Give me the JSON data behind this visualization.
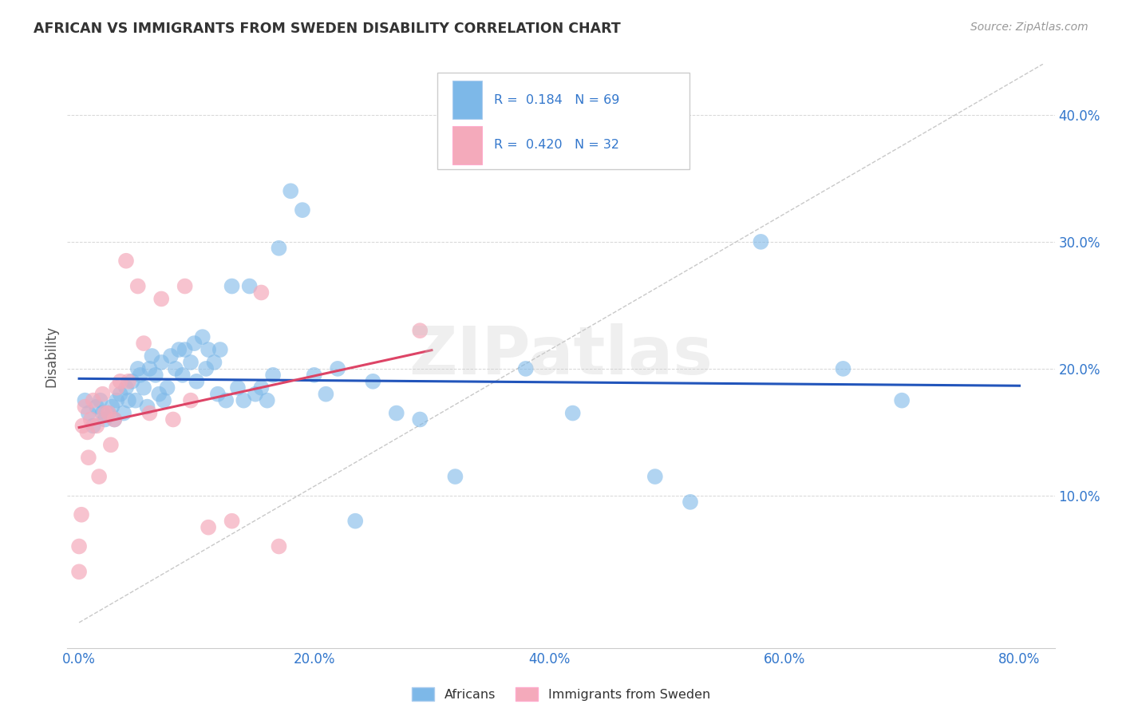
{
  "title": "AFRICAN VS IMMIGRANTS FROM SWEDEN DISABILITY CORRELATION CHART",
  "source": "Source: ZipAtlas.com",
  "ylabel": "Disability",
  "xlim": [
    -0.01,
    0.83
  ],
  "ylim": [
    -0.02,
    0.44
  ],
  "x_ticks": [
    0.0,
    0.2,
    0.4,
    0.6,
    0.8
  ],
  "y_ticks": [
    0.1,
    0.2,
    0.3,
    0.4
  ],
  "R_african": 0.184,
  "N_african": 69,
  "R_sweden": 0.42,
  "N_sweden": 32,
  "blue_color": "#7DB8E8",
  "pink_color": "#F4AABB",
  "blue_line_color": "#2255BB",
  "pink_line_color": "#DD4466",
  "diag_line_color": "#BBBBBB",
  "title_color": "#333333",
  "source_color": "#999999",
  "axis_label_color": "#3377CC",
  "ylabel_color": "#555555",
  "watermark": "ZIPatlas",
  "africans_x": [
    0.005,
    0.008,
    0.012,
    0.015,
    0.018,
    0.02,
    0.022,
    0.025,
    0.028,
    0.03,
    0.032,
    0.035,
    0.038,
    0.04,
    0.042,
    0.045,
    0.048,
    0.05,
    0.052,
    0.055,
    0.058,
    0.06,
    0.062,
    0.065,
    0.068,
    0.07,
    0.072,
    0.075,
    0.078,
    0.082,
    0.085,
    0.088,
    0.09,
    0.095,
    0.098,
    0.1,
    0.105,
    0.108,
    0.11,
    0.115,
    0.118,
    0.12,
    0.125,
    0.13,
    0.135,
    0.14,
    0.145,
    0.15,
    0.155,
    0.16,
    0.165,
    0.17,
    0.18,
    0.19,
    0.2,
    0.21,
    0.22,
    0.235,
    0.25,
    0.27,
    0.29,
    0.32,
    0.38,
    0.42,
    0.49,
    0.52,
    0.58,
    0.65,
    0.7
  ],
  "africans_y": [
    0.175,
    0.165,
    0.155,
    0.17,
    0.175,
    0.165,
    0.16,
    0.165,
    0.17,
    0.16,
    0.175,
    0.18,
    0.165,
    0.185,
    0.175,
    0.19,
    0.175,
    0.2,
    0.195,
    0.185,
    0.17,
    0.2,
    0.21,
    0.195,
    0.18,
    0.205,
    0.175,
    0.185,
    0.21,
    0.2,
    0.215,
    0.195,
    0.215,
    0.205,
    0.22,
    0.19,
    0.225,
    0.2,
    0.215,
    0.205,
    0.18,
    0.215,
    0.175,
    0.265,
    0.185,
    0.175,
    0.265,
    0.18,
    0.185,
    0.175,
    0.195,
    0.295,
    0.34,
    0.325,
    0.195,
    0.18,
    0.2,
    0.08,
    0.19,
    0.165,
    0.16,
    0.115,
    0.2,
    0.165,
    0.115,
    0.095,
    0.3,
    0.2,
    0.175
  ],
  "sweden_x": [
    0.0,
    0.0,
    0.002,
    0.003,
    0.005,
    0.007,
    0.008,
    0.01,
    0.012,
    0.015,
    0.017,
    0.02,
    0.022,
    0.025,
    0.027,
    0.03,
    0.032,
    0.035,
    0.04,
    0.042,
    0.05,
    0.055,
    0.06,
    0.07,
    0.08,
    0.09,
    0.095,
    0.11,
    0.13,
    0.155,
    0.17,
    0.29
  ],
  "sweden_y": [
    0.06,
    0.04,
    0.085,
    0.155,
    0.17,
    0.15,
    0.13,
    0.16,
    0.175,
    0.155,
    0.115,
    0.18,
    0.165,
    0.165,
    0.14,
    0.16,
    0.185,
    0.19,
    0.285,
    0.19,
    0.265,
    0.22,
    0.165,
    0.255,
    0.16,
    0.265,
    0.175,
    0.075,
    0.08,
    0.26,
    0.06,
    0.23
  ]
}
